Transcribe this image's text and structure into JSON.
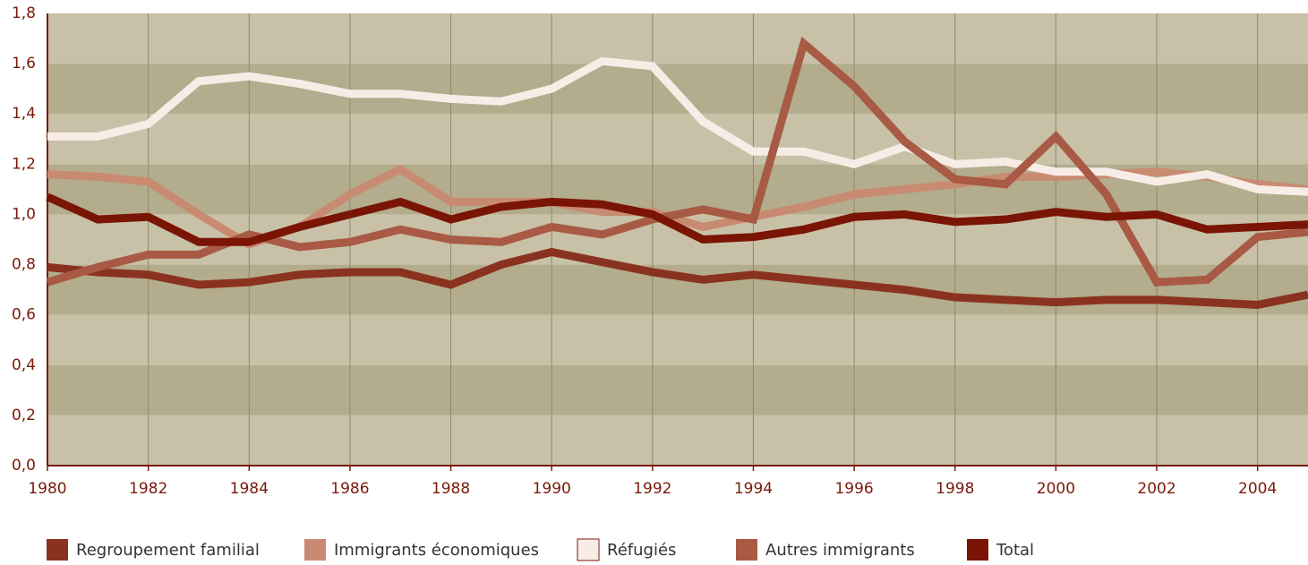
{
  "chart_data": {
    "type": "line",
    "x": [
      1980,
      1981,
      1982,
      1983,
      1984,
      1985,
      1986,
      1987,
      1988,
      1989,
      1990,
      1991,
      1992,
      1993,
      1994,
      1995,
      1996,
      1997,
      1998,
      1999,
      2000,
      2001,
      2002,
      2003,
      2004,
      2005
    ],
    "series": [
      {
        "name": "Regroupement familial",
        "color": "#8a3220",
        "values": [
          0.79,
          0.77,
          0.76,
          0.72,
          0.73,
          0.76,
          0.77,
          0.77,
          0.72,
          0.8,
          0.85,
          0.81,
          0.77,
          0.74,
          0.76,
          0.74,
          0.72,
          0.7,
          0.67,
          0.66,
          0.65,
          0.66,
          0.66,
          0.65,
          0.64,
          0.68
        ]
      },
      {
        "name": "Immigrants économiques",
        "color": "#c98a72",
        "values": [
          1.16,
          1.15,
          1.13,
          1.0,
          0.88,
          0.95,
          1.08,
          1.18,
          1.05,
          1.05,
          1.05,
          1.01,
          1.01,
          0.95,
          0.99,
          1.03,
          1.08,
          1.1,
          1.12,
          1.15,
          1.15,
          1.16,
          1.17,
          1.15,
          1.12,
          1.1
        ]
      },
      {
        "name": "Réfugiés",
        "color": "#f8ede6",
        "values": [
          1.31,
          1.31,
          1.36,
          1.53,
          1.55,
          1.52,
          1.48,
          1.48,
          1.46,
          1.45,
          1.5,
          1.61,
          1.59,
          1.37,
          1.25,
          1.25,
          1.2,
          1.27,
          1.2,
          1.21,
          1.17,
          1.17,
          1.13,
          1.16,
          1.1,
          1.09
        ]
      },
      {
        "name": "Autres immigrants",
        "color": "#a85a44",
        "values": [
          0.73,
          0.79,
          0.84,
          0.84,
          0.92,
          0.87,
          0.89,
          0.94,
          0.9,
          0.89,
          0.95,
          0.92,
          0.98,
          1.02,
          0.98,
          1.68,
          1.51,
          1.29,
          1.14,
          1.12,
          1.31,
          1.08,
          0.73,
          0.74,
          0.91,
          0.93
        ]
      },
      {
        "name": "Total",
        "color": "#7a1505",
        "values": [
          1.07,
          0.98,
          0.99,
          0.89,
          0.89,
          0.95,
          1.0,
          1.05,
          0.98,
          1.03,
          1.05,
          1.04,
          1.0,
          0.9,
          0.91,
          0.94,
          0.99,
          1.0,
          0.97,
          0.98,
          1.01,
          0.99,
          1.0,
          0.94,
          0.95,
          0.96
        ]
      }
    ],
    "xlim": [
      1980,
      2005
    ],
    "xticks": [
      1980,
      1982,
      1984,
      1986,
      1988,
      1990,
      1992,
      1994,
      1996,
      1998,
      2000,
      2002,
      2004
    ],
    "ylim": [
      0,
      1.8
    ],
    "yticks": [
      {
        "value": 0,
        "label": "0,0"
      },
      {
        "value": 0.2,
        "label": "0,2"
      },
      {
        "value": 0.4,
        "label": "0,4"
      },
      {
        "value": 0.6,
        "label": "0,6"
      },
      {
        "value": 0.8,
        "label": "0,8"
      },
      {
        "value": 1.0,
        "label": "1,0"
      },
      {
        "value": 1.2,
        "label": "1,2"
      },
      {
        "value": 1.4,
        "label": "1,4"
      },
      {
        "value": 1.6,
        "label": "1,6"
      },
      {
        "value": 1.8,
        "label": "1,8"
      }
    ],
    "grid": true
  }
}
